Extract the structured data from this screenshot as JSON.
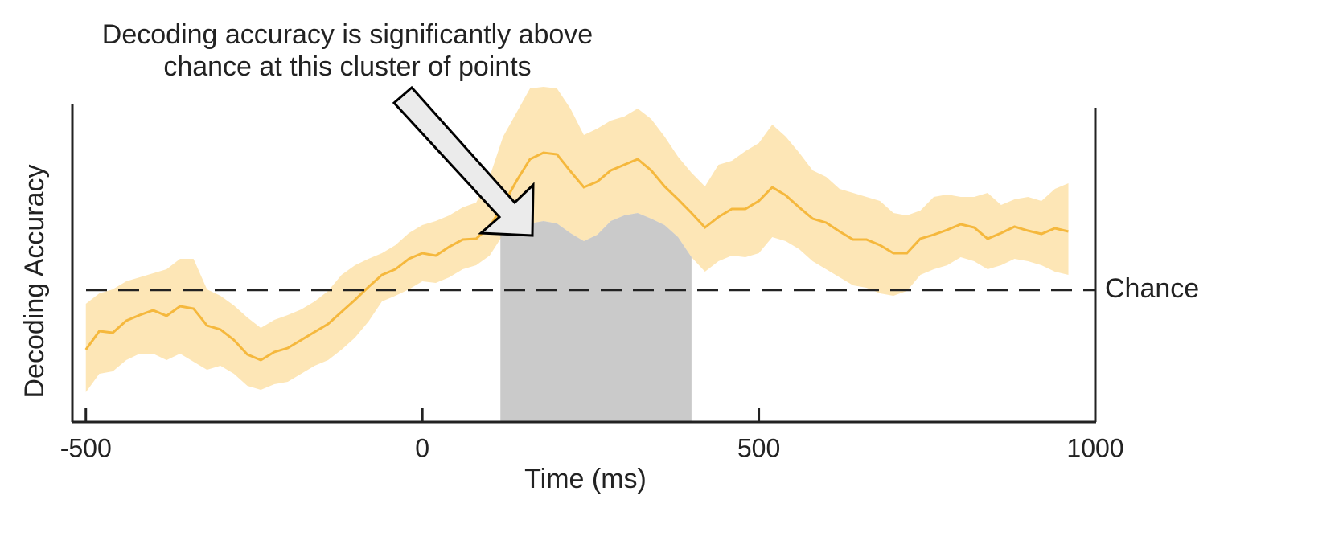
{
  "chart_data": {
    "type": "line",
    "ylabel": "Decoding Accuracy",
    "xlabel": "Time (ms)",
    "annotation": [
      "Decoding accuracy is significantly above",
      "chance at this cluster of points"
    ],
    "chance_label": "Chance",
    "chance": 164,
    "xlim": [
      -520,
      1000
    ],
    "xticks": [
      -500,
      0,
      500,
      1000
    ],
    "ylim": [
      0,
      395
    ],
    "cluster": [
      116,
      400
    ],
    "cluster_color": "#bdbdbd",
    "band_color": "#fde6b6",
    "x": [
      -500,
      -480,
      -460,
      -440,
      -420,
      -400,
      -380,
      -360,
      -340,
      -320,
      -300,
      -280,
      -260,
      -240,
      -220,
      -200,
      -180,
      -160,
      -140,
      -120,
      -100,
      -80,
      -60,
      -40,
      -20,
      0,
      20,
      40,
      60,
      80,
      100,
      120,
      140,
      160,
      180,
      200,
      220,
      240,
      260,
      280,
      300,
      320,
      340,
      360,
      380,
      400,
      420,
      440,
      460,
      480,
      500,
      520,
      540,
      560,
      580,
      600,
      620,
      640,
      660,
      680,
      700,
      720,
      740,
      760,
      780,
      800,
      820,
      840,
      860,
      880,
      900,
      920,
      940,
      960
    ],
    "series": [
      {
        "color": "#f5b83d",
        "values": [
          90,
          113,
          111,
          126,
          133,
          139,
          132,
          144,
          141,
          120,
          115,
          102,
          84,
          77,
          87,
          92,
          102,
          112,
          122,
          137,
          152,
          168,
          183,
          190,
          203,
          210,
          207,
          218,
          227,
          228,
          243,
          270,
          300,
          327,
          335,
          333,
          312,
          292,
          299,
          313,
          320,
          327,
          313,
          293,
          277,
          260,
          242,
          255,
          265,
          265,
          275,
          292,
          282,
          267,
          253,
          248,
          237,
          227,
          227,
          220,
          210,
          210,
          228,
          233,
          239,
          246,
          242,
          228,
          235,
          243,
          238,
          234,
          241,
          237
        ],
        "upper": [
          147,
          160,
          165,
          175,
          180,
          185,
          190,
          203,
          203,
          165,
          157,
          145,
          130,
          117,
          127,
          133,
          140,
          150,
          163,
          183,
          195,
          203,
          210,
          220,
          235,
          245,
          250,
          257,
          267,
          273,
          305,
          355,
          385,
          415,
          417,
          415,
          390,
          357,
          365,
          375,
          380,
          390,
          377,
          355,
          330,
          310,
          293,
          320,
          325,
          337,
          347,
          370,
          355,
          335,
          313,
          305,
          290,
          285,
          280,
          275,
          260,
          257,
          263,
          280,
          283,
          280,
          280,
          285,
          270,
          277,
          280,
          275,
          290,
          297
        ],
        "lower": [
          37,
          60,
          63,
          77,
          85,
          85,
          77,
          85,
          75,
          65,
          70,
          60,
          45,
          40,
          47,
          50,
          60,
          70,
          77,
          90,
          105,
          125,
          150,
          157,
          165,
          175,
          173,
          180,
          190,
          195,
          207,
          233,
          245,
          247,
          250,
          247,
          235,
          225,
          233,
          250,
          257,
          260,
          253,
          245,
          230,
          205,
          187,
          200,
          207,
          205,
          210,
          230,
          225,
          215,
          200,
          190,
          180,
          170,
          167,
          160,
          157,
          163,
          183,
          190,
          195,
          205,
          200,
          190,
          195,
          203,
          200,
          195,
          187,
          183
        ]
      }
    ]
  }
}
